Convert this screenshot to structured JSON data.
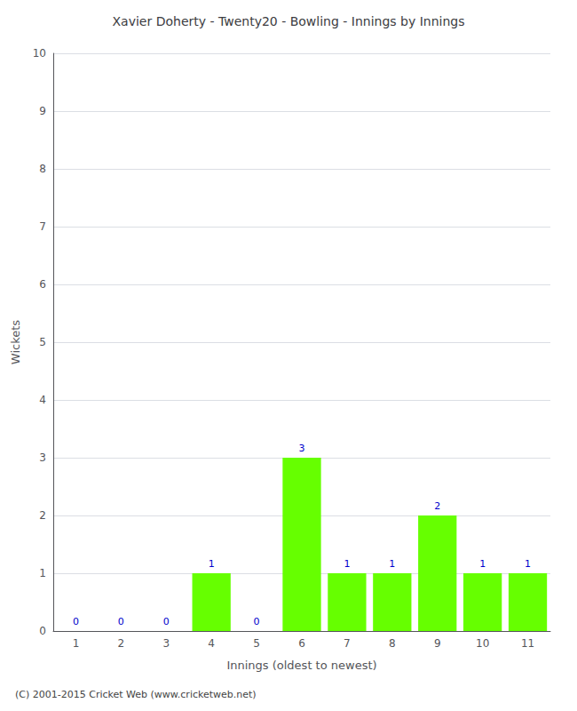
{
  "chart_data": {
    "type": "bar",
    "title": "Xavier Doherty - Twenty20 - Bowling - Innings by Innings",
    "xlabel": "Innings (oldest to newest)",
    "ylabel": "Wickets",
    "categories": [
      1,
      2,
      3,
      4,
      5,
      6,
      7,
      8,
      9,
      10,
      11
    ],
    "values": [
      0,
      0,
      0,
      1,
      0,
      3,
      1,
      1,
      2,
      1,
      1
    ],
    "color": "#66ff00",
    "ylim": [
      0,
      10
    ],
    "yticks": [
      0,
      1,
      2,
      3,
      4,
      5,
      6,
      7,
      8,
      9,
      10
    ],
    "grid": true,
    "data_labels": true,
    "annotation": "(C) 2001-2015 Cricket Web (www.cricketweb.net)"
  }
}
